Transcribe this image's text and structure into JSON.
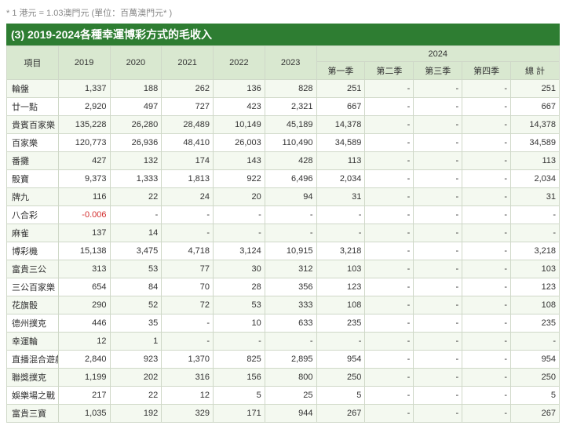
{
  "note": "* 1 港元 = 1.03澳門元 (單位：百萬澳門元* )",
  "title": "(3) 2019-2024各種幸運博彩方式的毛收入",
  "headers": {
    "item": "項目",
    "years": [
      "2019",
      "2020",
      "2021",
      "2022",
      "2023"
    ],
    "group": "2024",
    "quarters": [
      "第一季",
      "第二季",
      "第三季",
      "第四季",
      "總 計"
    ]
  },
  "rows": [
    {
      "label": "輪盤",
      "v": [
        "1,337",
        "188",
        "262",
        "136",
        "828",
        "251",
        "-",
        "-",
        "-",
        "251"
      ]
    },
    {
      "label": "廿一點",
      "v": [
        "2,920",
        "497",
        "727",
        "423",
        "2,321",
        "667",
        "-",
        "-",
        "-",
        "667"
      ]
    },
    {
      "label": "貴賓百家樂",
      "v": [
        "135,228",
        "26,280",
        "28,489",
        "10,149",
        "45,189",
        "14,378",
        "-",
        "-",
        "-",
        "14,378"
      ]
    },
    {
      "label": "百家樂",
      "v": [
        "120,773",
        "26,936",
        "48,410",
        "26,003",
        "110,490",
        "34,589",
        "-",
        "-",
        "-",
        "34,589"
      ]
    },
    {
      "label": "番攤",
      "v": [
        "427",
        "132",
        "174",
        "143",
        "428",
        "113",
        "-",
        "-",
        "-",
        "113"
      ]
    },
    {
      "label": "骰寶",
      "v": [
        "9,373",
        "1,333",
        "1,813",
        "922",
        "6,496",
        "2,034",
        "-",
        "-",
        "-",
        "2,034"
      ]
    },
    {
      "label": "牌九",
      "v": [
        "116",
        "22",
        "24",
        "20",
        "94",
        "31",
        "-",
        "-",
        "-",
        "31"
      ]
    },
    {
      "label": "八合彩",
      "v": [
        "-0.006",
        "-",
        "-",
        "-",
        "-",
        "-",
        "-",
        "-",
        "-",
        "-"
      ],
      "neg": [
        0
      ]
    },
    {
      "label": "麻雀",
      "v": [
        "137",
        "14",
        "-",
        "-",
        "-",
        "-",
        "-",
        "-",
        "-",
        "-"
      ]
    },
    {
      "label": "博彩機",
      "v": [
        "15,138",
        "3,475",
        "4,718",
        "3,124",
        "10,915",
        "3,218",
        "-",
        "-",
        "-",
        "3,218"
      ]
    },
    {
      "label": "富貴三公",
      "v": [
        "313",
        "53",
        "77",
        "30",
        "312",
        "103",
        "-",
        "-",
        "-",
        "103"
      ]
    },
    {
      "label": "三公百家樂",
      "v": [
        "654",
        "84",
        "70",
        "28",
        "356",
        "123",
        "-",
        "-",
        "-",
        "123"
      ]
    },
    {
      "label": "花旗骰",
      "v": [
        "290",
        "52",
        "72",
        "53",
        "333",
        "108",
        "-",
        "-",
        "-",
        "108"
      ]
    },
    {
      "label": "德州撲克",
      "v": [
        "446",
        "35",
        "-",
        "10",
        "633",
        "235",
        "-",
        "-",
        "-",
        "235"
      ]
    },
    {
      "label": "幸運輪",
      "v": [
        "12",
        "1",
        "-",
        "-",
        "-",
        "-",
        "-",
        "-",
        "-",
        "-"
      ]
    },
    {
      "label": "直播混合遊戲",
      "v": [
        "2,840",
        "923",
        "1,370",
        "825",
        "2,895",
        "954",
        "-",
        "-",
        "-",
        "954"
      ]
    },
    {
      "label": "聯獎撲克",
      "v": [
        "1,199",
        "202",
        "316",
        "156",
        "800",
        "250",
        "-",
        "-",
        "-",
        "250"
      ]
    },
    {
      "label": "娛樂場之戰",
      "v": [
        "217",
        "22",
        "12",
        "5",
        "25",
        "5",
        "-",
        "-",
        "-",
        "5"
      ]
    },
    {
      "label": "富貴三寶",
      "v": [
        "1,035",
        "192",
        "329",
        "171",
        "944",
        "267",
        "-",
        "-",
        "-",
        "267"
      ]
    }
  ]
}
